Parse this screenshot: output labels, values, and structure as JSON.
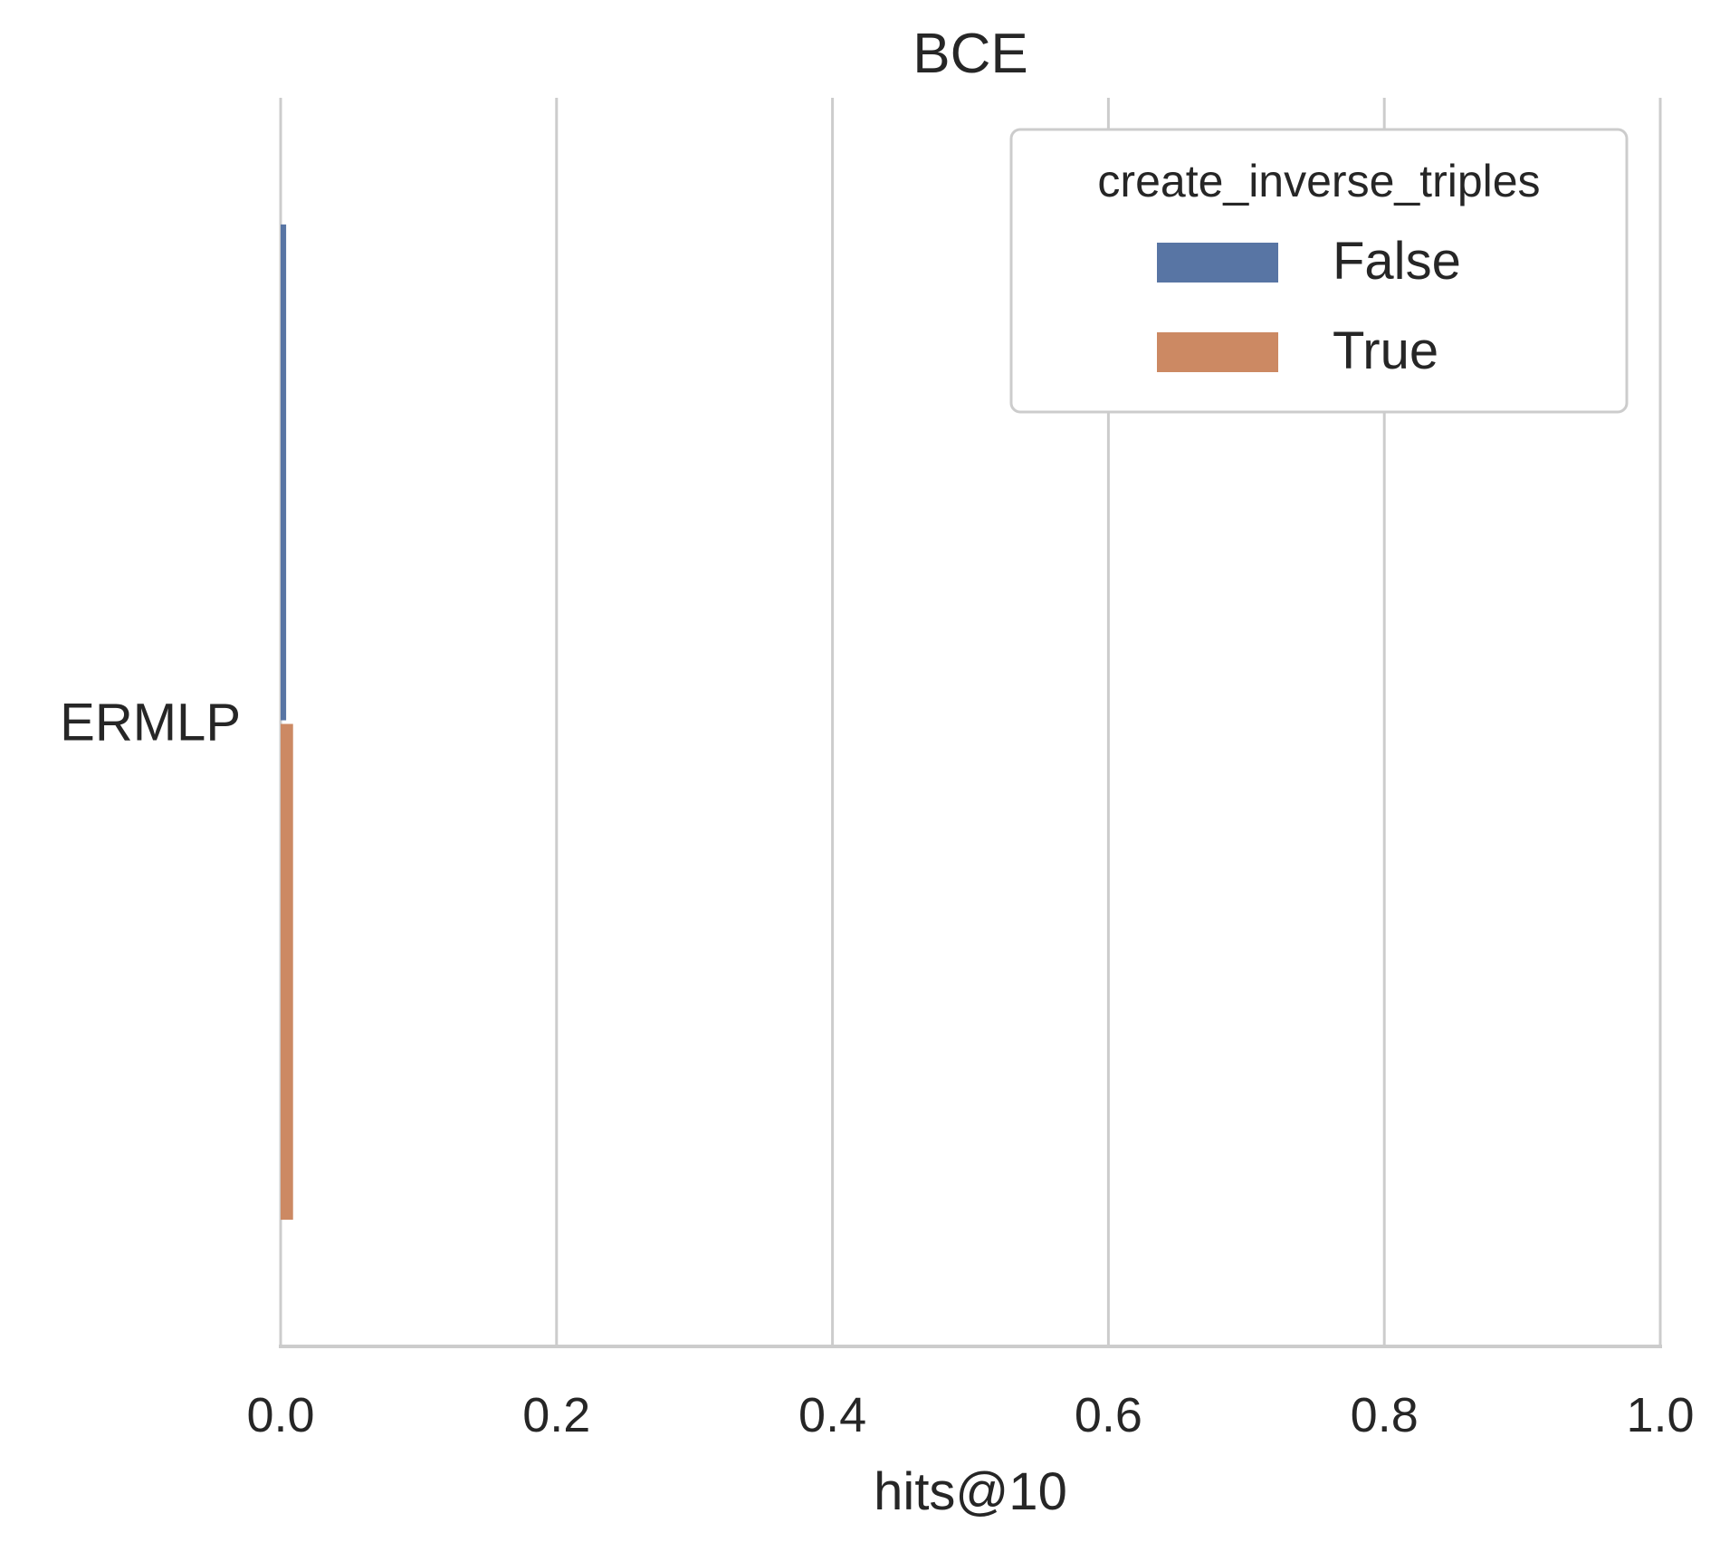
{
  "chart_data": {
    "type": "bar",
    "orientation": "horizontal",
    "title": "BCE",
    "xlabel": "hits@10",
    "ylabel": "",
    "categories": [
      "ERMLP"
    ],
    "series": [
      {
        "name": "False",
        "values": [
          0.004
        ],
        "color": "#5875a4"
      },
      {
        "name": "True",
        "values": [
          0.009
        ],
        "color": "#cc8963"
      }
    ],
    "xlim": [
      0.0,
      1.0
    ],
    "xticks": [
      "0.0",
      "0.2",
      "0.4",
      "0.6",
      "0.8",
      "1.0"
    ],
    "grid": "vertical",
    "legend": {
      "title": "create_inverse_triples",
      "position": "top-right"
    }
  }
}
